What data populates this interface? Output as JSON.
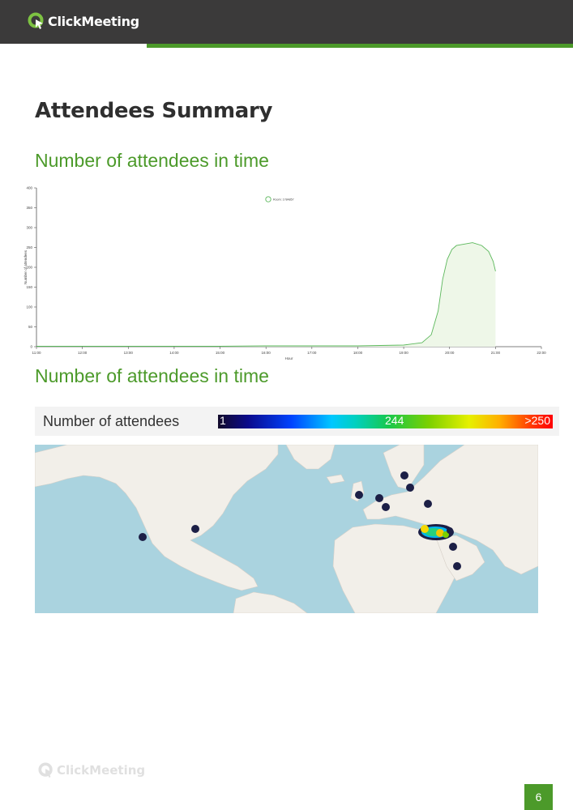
{
  "header": {
    "brand": "ClickMeeting",
    "colors": {
      "bar": "#3b3a3a",
      "accent": "#4c9a2a"
    }
  },
  "page": {
    "title": "Attendees Summary",
    "section1_heading": "Number of attendees in time",
    "section2_heading": "Number of attendees in time",
    "page_number": "6"
  },
  "chart_data": {
    "type": "area",
    "title": "",
    "xlabel": "Hour",
    "ylabel": "Number of attendees",
    "ylim": [
      0,
      400
    ],
    "yticks": [
      "0",
      "50",
      "100",
      "150",
      "200",
      "250",
      "300",
      "350",
      "400"
    ],
    "xticks": [
      "11:00",
      "12:00",
      "13:00",
      "14:00",
      "15:00",
      "16:00",
      "17:00",
      "18:00",
      "19:00",
      "20:00",
      "21:00",
      "22:00"
    ],
    "legend": {
      "label": "Room: 1784857",
      "position": "top-center"
    },
    "grid": false,
    "color": "#5cb85c",
    "series": [
      {
        "x": [
          11.0,
          12.0,
          13.0,
          14.0,
          15.0,
          16.0,
          17.0,
          18.0,
          18.5,
          19.0,
          19.4,
          19.6,
          19.75,
          19.85,
          19.95,
          20.05,
          20.15,
          20.3,
          20.5,
          20.7,
          20.85,
          20.95,
          21.0
        ],
        "y": [
          1,
          1,
          1,
          1,
          1,
          2,
          2,
          2,
          3,
          4,
          10,
          30,
          90,
          170,
          220,
          245,
          255,
          258,
          262,
          255,
          240,
          215,
          190
        ]
      }
    ]
  },
  "map_legend": {
    "label": "Number of attendees",
    "min": "1",
    "mid": "244",
    "max": ">250"
  },
  "footer": {
    "brand": "ClickMeeting"
  }
}
